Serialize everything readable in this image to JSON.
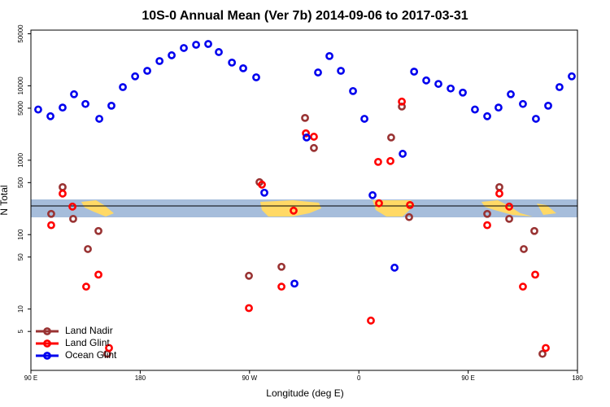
{
  "chart_data": {
    "type": "scatter",
    "title": "10S-0 Annual Mean (Ver 7b)   2014-09-06 to 2017-03-31",
    "x_label": "Longitude (deg E)",
    "y_label": "N Total",
    "log_y": true,
    "legend": "lower left",
    "xlim": [
      90,
      540
    ],
    "xticks": [
      {
        "value": 90,
        "label": "90 E"
      },
      180,
      {
        "value": 270,
        "label": "90 W"
      },
      {
        "value": 360,
        "label": "0"
      },
      {
        "value": 450,
        "label": "90 E"
      },
      {
        "value": 540,
        "label": "180"
      }
    ],
    "ylim": [
      1.5,
      56000
    ],
    "yticks": [
      5,
      10,
      50,
      100,
      500,
      1000,
      5000,
      10000,
      50000
    ],
    "series": [
      {
        "name": "Land Nadir",
        "color": "#993333",
        "x": [
          106.7,
          116.1,
          124.8,
          136.9,
          145.6,
          152.9,
          269.5,
          278.2,
          296.3,
          315.7,
          323,
          386.6,
          395.4,
          401.4,
          465.7,
          475.7,
          483.8,
          495.8,
          504.5,
          511.2
        ],
        "values": [
          190,
          435,
          163,
          64,
          112,
          2.5,
          28,
          507,
          37,
          3700,
          1460,
          2020,
          5260,
          172,
          190,
          435,
          163,
          64,
          112,
          2.5
        ]
      },
      {
        "name": "Land Glint",
        "color": "#ff0000",
        "x": [
          106.7,
          116.1,
          124.2,
          135.5,
          145.6,
          154.3,
          269.5,
          280.2,
          296.3,
          306.3,
          316.4,
          323,
          369.9,
          375.9,
          376.6,
          386,
          395.4,
          402.1,
          465.7,
          475.7,
          483.8,
          495.1,
          505.2,
          513.9
        ],
        "values": [
          134,
          356,
          238,
          20,
          29,
          3.0,
          10.3,
          470,
          20,
          210,
          2300,
          2070,
          7.0,
          950,
          264,
          975,
          6130,
          250,
          134,
          356,
          238,
          20,
          29,
          3.0
        ]
      },
      {
        "name": "Ocean Glint",
        "color": "#0000ee",
        "x": [
          96,
          106.1,
          116.1,
          125.5,
          134.9,
          146.3,
          156.3,
          165.7,
          175.8,
          185.8,
          195.9,
          205.9,
          215.9,
          226,
          236,
          244.7,
          255.5,
          264.8,
          275.5,
          282.2,
          307,
          317,
          326.4,
          335.8,
          345.2,
          355.2,
          364.6,
          371.3,
          389.4,
          396.1,
          405.5,
          415.5,
          425.5,
          435.6,
          445.6,
          455.6,
          465.7,
          475,
          485.1,
          495.1,
          505.8,
          515.9,
          525.2,
          535.3
        ],
        "values": [
          4800,
          3900,
          5100,
          7700,
          5700,
          3600,
          5400,
          9600,
          13400,
          15900,
          21500,
          25700,
          32200,
          35600,
          36500,
          28400,
          20500,
          17200,
          13000,
          366,
          22,
          2020,
          15100,
          25100,
          15900,
          8500,
          3600,
          339,
          36,
          1220,
          15500,
          11800,
          10600,
          9200,
          8100,
          4800,
          3900,
          5100,
          7700,
          5700,
          3600,
          5400,
          9600,
          13400
        ]
      }
    ]
  }
}
